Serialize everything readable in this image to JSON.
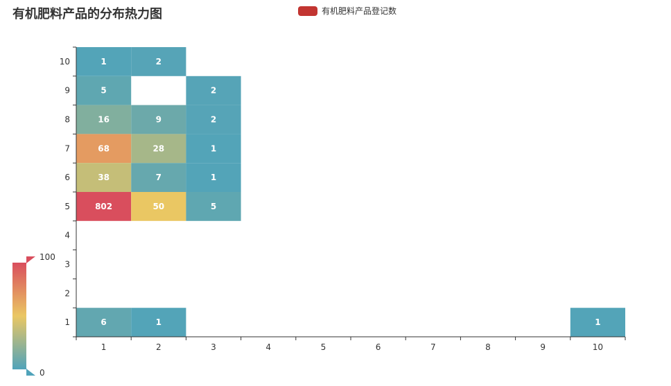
{
  "chart_data": {
    "type": "heatmap",
    "title": "有机肥料产品的分布热力图",
    "legend": {
      "label": "有机肥料产品登记数",
      "color": "#c23531",
      "position": "top-center"
    },
    "x_categories": [
      "1",
      "2",
      "3",
      "4",
      "5",
      "6",
      "7",
      "8",
      "9",
      "10"
    ],
    "y_categories": [
      "1",
      "2",
      "3",
      "4",
      "5",
      "6",
      "7",
      "8",
      "9",
      "10"
    ],
    "cells": [
      {
        "x": "1",
        "y": "10",
        "value": 1
      },
      {
        "x": "2",
        "y": "10",
        "value": 2
      },
      {
        "x": "1",
        "y": "9",
        "value": 5
      },
      {
        "x": "3",
        "y": "9",
        "value": 2
      },
      {
        "x": "1",
        "y": "8",
        "value": 16
      },
      {
        "x": "2",
        "y": "8",
        "value": 9
      },
      {
        "x": "3",
        "y": "8",
        "value": 2
      },
      {
        "x": "1",
        "y": "7",
        "value": 68
      },
      {
        "x": "2",
        "y": "7",
        "value": 28
      },
      {
        "x": "3",
        "y": "7",
        "value": 1
      },
      {
        "x": "1",
        "y": "6",
        "value": 38
      },
      {
        "x": "2",
        "y": "6",
        "value": 7
      },
      {
        "x": "3",
        "y": "6",
        "value": 1
      },
      {
        "x": "1",
        "y": "5",
        "value": 802
      },
      {
        "x": "2",
        "y": "5",
        "value": 50
      },
      {
        "x": "3",
        "y": "5",
        "value": 5
      },
      {
        "x": "1",
        "y": "1",
        "value": 6
      },
      {
        "x": "2",
        "y": "1",
        "value": 1
      },
      {
        "x": "10",
        "y": "1",
        "value": 1
      }
    ],
    "visual_map": {
      "min": 0,
      "max": 100,
      "min_label": "0",
      "max_label": "100",
      "colors": [
        "#50a3ba",
        "#eac763",
        "#d94e5d"
      ],
      "position": "bottom-left"
    },
    "grid": false
  }
}
